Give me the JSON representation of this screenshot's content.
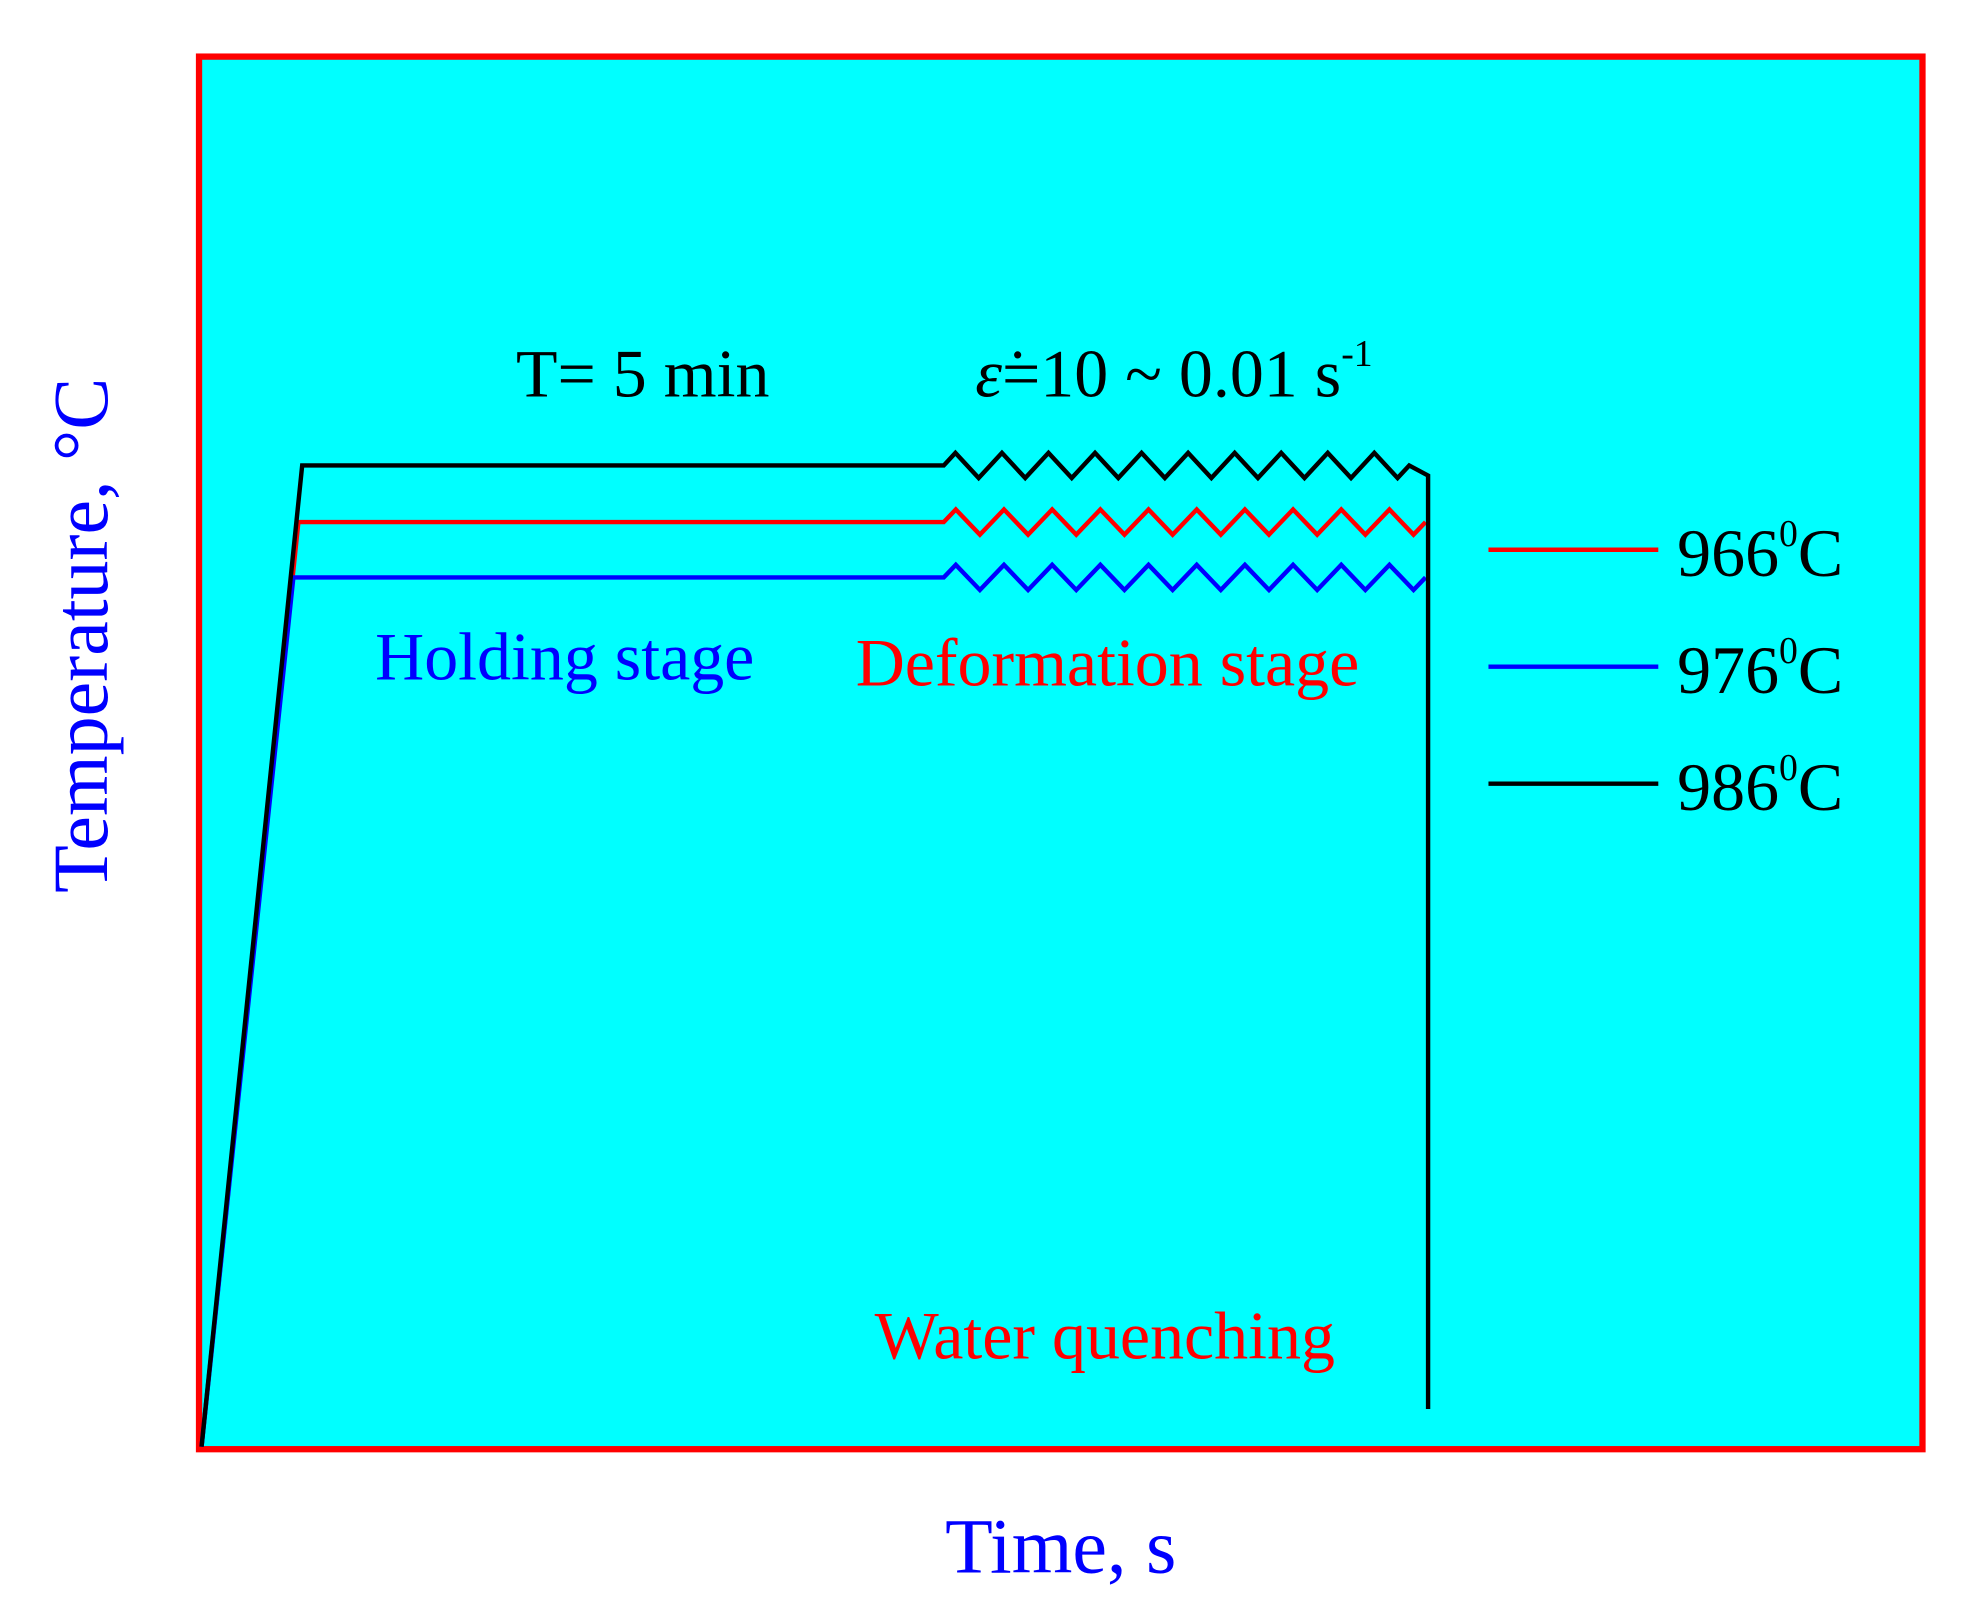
{
  "axes": {
    "x_label": "Time, s",
    "y_label": "Temperature, °C"
  },
  "annotations": {
    "hold_time": "T= 5 min",
    "strain_rate": {
      "symbol": "ε̇",
      "text": "=10 ~ 0.01 s",
      "exponent": "-1"
    },
    "holding_stage": "Holding stage",
    "deformation_stage": "Deformation stage",
    "water_quenching": "Water quenching"
  },
  "legend": [
    {
      "label": "966",
      "degree": "0",
      "unit": "C",
      "color": "#ff0000"
    },
    {
      "label": "976",
      "degree": "0",
      "unit": "C",
      "color": "#0000ff"
    },
    {
      "label": "986",
      "degree": "0",
      "unit": "C",
      "color": "#000000"
    }
  ]
}
